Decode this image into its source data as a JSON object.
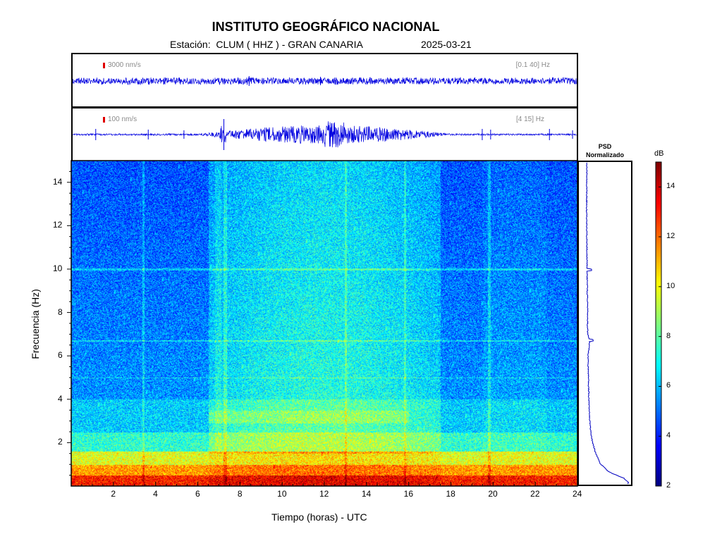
{
  "header": {
    "title": "INSTITUTO GEOGRÁFICO NACIONAL",
    "station": "Estación:  CLUM ( HHZ ) - GRAN CANARIA",
    "date": "2025-03-21"
  },
  "trace_top": {
    "scale": "3000 nm/s",
    "band": "[0.1 40] Hz"
  },
  "trace_bottom": {
    "scale": "100 nm/s",
    "band": "[4 15] Hz"
  },
  "psd": {
    "title_line1": "PSD",
    "title_line2": "Normalizado"
  },
  "colorbar": {
    "unit": "dB",
    "range": [
      2,
      15
    ],
    "ticks": [
      "2",
      "4",
      "6",
      "8",
      "10",
      "12",
      "14"
    ]
  },
  "chart_data": {
    "type": "heatmap",
    "xlabel": "Tiempo (horas) - UTC",
    "ylabel": "Frecuencia  (Hz)",
    "xlim": [
      0,
      24
    ],
    "ylim": [
      0,
      15
    ],
    "x_ticks": [
      "2",
      "4",
      "6",
      "8",
      "10",
      "12",
      "14",
      "16",
      "18",
      "20",
      "22",
      "24"
    ],
    "y_ticks": [
      "2",
      "4",
      "6",
      "8",
      "10",
      "12",
      "14"
    ],
    "colorbar_unit": "dB",
    "colorbar_range": [
      2,
      15
    ],
    "psd_profile": {
      "frequency_hz": [
        0.1,
        0.3,
        0.6,
        1.0,
        1.5,
        2.0,
        2.5,
        3.0,
        4.0,
        5.0,
        6.0,
        6.7,
        7.0,
        8.0,
        10.0,
        12.0,
        14.0,
        15.0
      ],
      "normalized": [
        1.0,
        0.9,
        0.55,
        0.35,
        0.25,
        0.18,
        0.14,
        0.12,
        0.1,
        0.09,
        0.08,
        0.12,
        0.07,
        0.07,
        0.06,
        0.05,
        0.05,
        0.05
      ]
    }
  }
}
